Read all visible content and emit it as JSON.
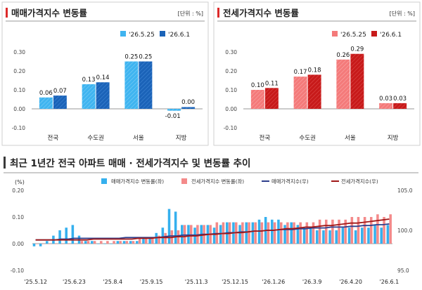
{
  "colors": {
    "sale_prev": "#3fb4f0",
    "sale_cur": "#1b63b8",
    "jeonse_prev": "#f47a7a",
    "jeonse_cur": "#c71a1a",
    "sale_bar_bottom": "#35b0ee",
    "jeonse_bar_bottom": "#f48a8a",
    "sale_line": "#2d3e8c",
    "jeonse_line": "#a01818",
    "panel_border": "#cfcfcf",
    "title_bar_left": "#dc2a2a",
    "title_bar_right": "#3a3a3a"
  },
  "units_note": "[단위 : %]",
  "chart_data": [
    {
      "type": "bar",
      "title": "매매가격지수 변동률",
      "categories": [
        "전국",
        "수도권",
        "서울",
        "지방"
      ],
      "series": [
        {
          "name": "'26.5.25",
          "values": [
            0.06,
            0.13,
            0.25,
            -0.01
          ],
          "labels": [
            "0.06",
            "0.13",
            "0.25",
            "-0.01"
          ]
        },
        {
          "name": "'26.6.1",
          "values": [
            0.07,
            0.14,
            0.25,
            0.0
          ],
          "labels": [
            "0.07",
            "0.14",
            "0.25",
            "0.00"
          ]
        }
      ],
      "ylim": [
        -0.1,
        0.3
      ],
      "yticks": [
        "0.30",
        "0.20",
        "0.10",
        "0.00",
        "-0.10"
      ],
      "legend": "top-right"
    },
    {
      "type": "bar",
      "title": "전세가격지수 변동률",
      "categories": [
        "전국",
        "수도권",
        "서울",
        "지방"
      ],
      "series": [
        {
          "name": "'26.5.25",
          "values": [
            0.1,
            0.17,
            0.26,
            0.03
          ],
          "labels": [
            "0.10",
            "0.17",
            "0.26",
            "0.03"
          ]
        },
        {
          "name": "'26.6.1",
          "values": [
            0.11,
            0.18,
            0.29,
            0.03
          ],
          "labels": [
            "0.11",
            "0.18",
            "0.29",
            "0.03"
          ]
        }
      ],
      "ylim": [
        -0.1,
        0.3
      ],
      "yticks": [
        "0.30",
        "0.20",
        "0.10",
        "0.00",
        "-0.10"
      ],
      "legend": "top-right"
    },
    {
      "type": "bar",
      "title": "최근 1년간 전국 아파트 매매 · 전세가격지수 및 변동률 추이",
      "y_left_unit": "(%)",
      "ylim_left": [
        -0.1,
        0.2
      ],
      "yticks_left": [
        "0.20",
        "0.10",
        "0.00",
        "-0.10"
      ],
      "ylim_right": [
        95.0,
        105.0
      ],
      "yticks_right": [
        "105.0",
        "100.0",
        "95.0"
      ],
      "x_tick_labels": [
        "'25.5.12",
        "'25.6.23",
        "'25.8.4",
        "'25.9.15",
        "'25.11.3",
        "'25.12.15",
        "'26.1.26",
        "'26.3.9",
        "'26.4.20",
        "'26.6.1"
      ],
      "x_tick_index": [
        0,
        6,
        12,
        18,
        25,
        31,
        37,
        43,
        49,
        55
      ],
      "legend": "top",
      "series": [
        {
          "name": "매매가격지수 변동률(좌)",
          "kind": "bar",
          "values": [
            -0.01,
            -0.01,
            0.01,
            0.03,
            0.05,
            0.06,
            0.07,
            0.03,
            0.01,
            0.01,
            0.0,
            0.0,
            0.0,
            0.01,
            0.01,
            0.01,
            0.01,
            0.02,
            0.02,
            0.04,
            0.06,
            0.13,
            0.12,
            0.07,
            0.07,
            0.06,
            0.07,
            0.07,
            0.06,
            0.07,
            0.08,
            0.08,
            0.07,
            0.08,
            0.08,
            0.09,
            0.1,
            0.09,
            0.09,
            0.07,
            0.08,
            0.07,
            0.06,
            0.06,
            0.05,
            0.05,
            0.05,
            0.05,
            0.06,
            0.06,
            0.05,
            0.06,
            0.06,
            0.07,
            0.06,
            0.07
          ]
        },
        {
          "name": "전세가격지수 변동률(좌)",
          "kind": "bar",
          "values": [
            0.0,
            0.0,
            0.0,
            0.0,
            0.0,
            0.0,
            0.0,
            0.01,
            0.01,
            0.01,
            0.01,
            0.01,
            0.01,
            0.01,
            0.01,
            0.01,
            0.02,
            0.02,
            0.02,
            0.03,
            0.04,
            0.05,
            0.05,
            0.07,
            0.07,
            0.07,
            0.07,
            0.07,
            0.08,
            0.08,
            0.08,
            0.08,
            0.08,
            0.08,
            0.08,
            0.08,
            0.08,
            0.08,
            0.08,
            0.08,
            0.08,
            0.08,
            0.08,
            0.08,
            0.09,
            0.09,
            0.09,
            0.09,
            0.09,
            0.1,
            0.1,
            0.1,
            0.1,
            0.11,
            0.1,
            0.11
          ]
        },
        {
          "name": "매매가격지수(우)",
          "kind": "line",
          "values": [
            98.8,
            98.8,
            98.8,
            98.8,
            98.9,
            98.9,
            99.0,
            99.0,
            99.0,
            99.0,
            99.0,
            99.0,
            99.0,
            99.0,
            99.1,
            99.1,
            99.1,
            99.1,
            99.1,
            99.1,
            99.2,
            99.3,
            99.3,
            99.4,
            99.4,
            99.4,
            99.5,
            99.5,
            99.6,
            99.6,
            99.7,
            99.7,
            99.8,
            99.8,
            99.9,
            99.9,
            100.0,
            100.0,
            100.1,
            100.1,
            100.1,
            100.2,
            100.2,
            100.3,
            100.3,
            100.3,
            100.4,
            100.4,
            100.4,
            100.5,
            100.5,
            100.6,
            100.6,
            100.7,
            100.7,
            100.8
          ]
        },
        {
          "name": "전세가격지수(우)",
          "kind": "line",
          "values": [
            98.8,
            98.8,
            98.8,
            98.8,
            98.8,
            98.8,
            98.8,
            98.8,
            98.8,
            98.9,
            98.9,
            98.9,
            98.9,
            98.9,
            98.9,
            98.9,
            99.0,
            99.0,
            99.0,
            99.1,
            99.1,
            99.1,
            99.2,
            99.2,
            99.3,
            99.3,
            99.4,
            99.5,
            99.5,
            99.6,
            99.6,
            99.7,
            99.7,
            99.8,
            99.9,
            99.9,
            100.0,
            100.0,
            100.1,
            100.2,
            100.2,
            100.3,
            100.4,
            100.4,
            100.5,
            100.6,
            100.6,
            100.7,
            100.8,
            100.9,
            100.9,
            101.0,
            101.1,
            101.2,
            101.3,
            101.4
          ]
        }
      ]
    }
  ]
}
